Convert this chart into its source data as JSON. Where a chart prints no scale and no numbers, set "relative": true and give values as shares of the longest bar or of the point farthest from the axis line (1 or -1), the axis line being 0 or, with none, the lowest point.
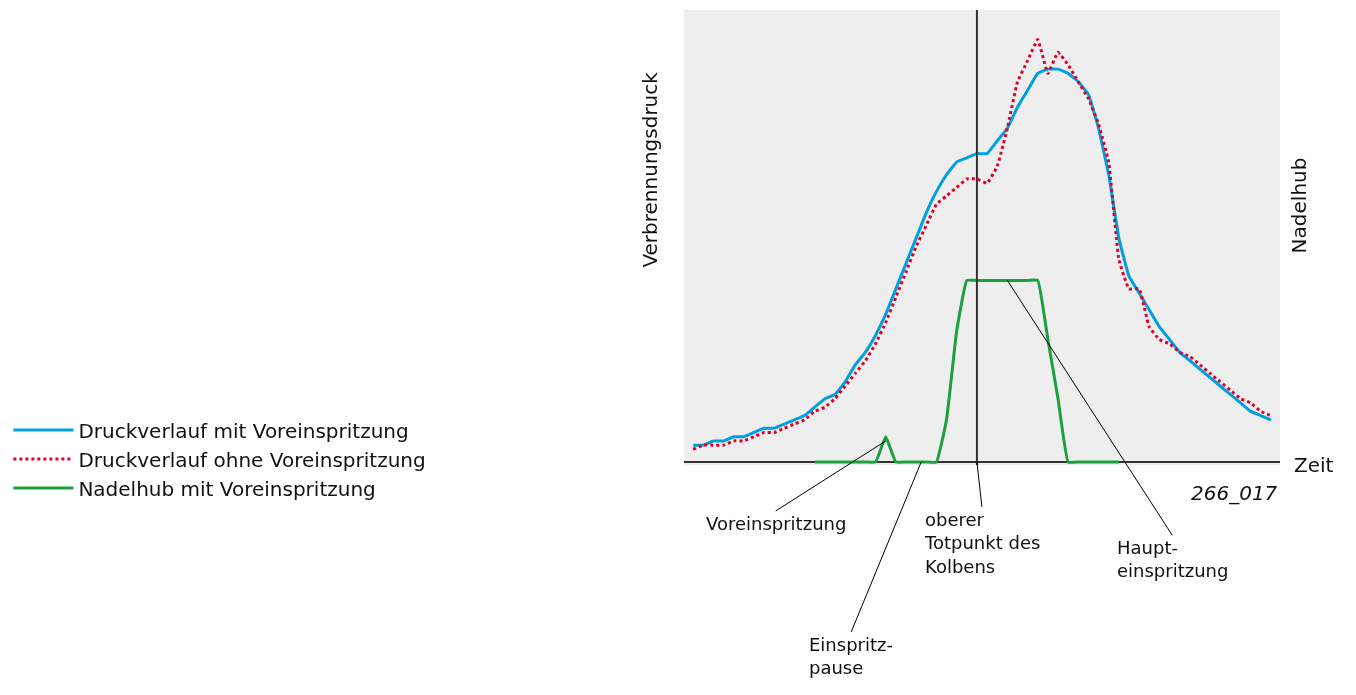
{
  "chart_data": {
    "type": "line",
    "relative": true,
    "xlabel": "Zeit",
    "ylabel": "Verbrennungsdruck",
    "y2label": "Nadelhub",
    "categories": [
      null,
      null,
      null,
      null,
      null,
      null,
      null,
      null,
      null,
      null,
      null,
      null,
      null,
      null,
      null,
      null,
      null,
      null,
      null,
      null,
      null,
      null,
      null,
      null,
      null,
      null,
      null,
      null,
      null,
      null,
      null,
      null,
      null,
      null,
      null,
      null,
      null,
      null,
      null,
      null,
      null,
      null,
      null,
      null,
      null,
      null,
      null,
      null,
      null,
      null,
      null,
      null,
      null,
      null,
      null,
      null,
      null,
      null
    ],
    "series": [
      {
        "name": "Druckverlauf mit Voreinspritzung",
        "color": "#00a0e0",
        "line_style": "solid",
        "values": [
          0.04,
          0.04,
          0.05,
          0.05,
          0.06,
          0.06,
          0.07,
          0.08,
          0.08,
          0.09,
          0.1,
          0.11,
          0.13,
          0.15,
          0.16,
          0.19,
          0.23,
          0.26,
          0.3,
          0.35,
          0.41,
          0.47,
          0.53,
          0.59,
          0.64,
          0.68,
          0.71,
          0.72,
          0.73,
          0.73,
          0.76,
          0.79,
          0.84,
          0.88,
          0.92,
          0.93,
          0.93,
          0.92,
          0.9,
          0.87,
          0.79,
          0.68,
          0.53,
          0.44,
          0.4,
          0.36,
          0.32,
          0.29,
          0.26,
          0.24,
          0.22,
          0.2,
          0.18,
          0.16,
          0.14,
          0.12,
          0.11,
          0.1
        ]
      },
      {
        "name": "Druckverlauf ohne Voreinspritzung",
        "color": "#e0002a",
        "line_style": "dotted",
        "values": [
          0.03,
          0.04,
          0.04,
          0.04,
          0.05,
          0.05,
          0.06,
          0.07,
          0.07,
          0.08,
          0.09,
          0.1,
          0.12,
          0.13,
          0.15,
          0.18,
          0.21,
          0.24,
          0.28,
          0.33,
          0.39,
          0.45,
          0.51,
          0.56,
          0.61,
          0.63,
          0.65,
          0.67,
          0.67,
          0.66,
          0.7,
          0.79,
          0.9,
          0.95,
          1.0,
          0.92,
          0.97,
          0.94,
          0.9,
          0.86,
          0.8,
          0.71,
          0.48,
          0.41,
          0.41,
          0.32,
          0.29,
          0.28,
          0.26,
          0.25,
          0.23,
          0.21,
          0.19,
          0.17,
          0.15,
          0.14,
          0.12,
          0.11
        ]
      },
      {
        "name": "Nadelhub mit Voreinspritzung",
        "color": "#1aa03c",
        "line_style": "solid",
        "values": [
          null,
          null,
          null,
          null,
          null,
          null,
          null,
          null,
          null,
          null,
          null,
          null,
          0,
          0,
          0,
          0,
          0,
          0,
          0,
          0.06,
          0,
          0,
          0,
          0,
          0,
          0.1,
          0.31,
          0.43,
          0.43,
          0.43,
          0.43,
          0.43,
          0.43,
          0.43,
          0.43,
          0.29,
          0.15,
          0,
          0,
          0,
          0,
          0,
          0,
          null,
          null,
          null,
          null,
          null,
          null,
          null,
          null,
          null,
          null,
          null,
          null,
          null,
          null,
          null
        ]
      }
    ],
    "annotations": [
      "266_017",
      "Voreinspritzung",
      "Einspritz-\npause",
      "oberer\nTotpunkt des\nKolbens",
      "Haupt-\neinspritzung"
    ],
    "legend": "left",
    "grid": false,
    "marker": "none"
  }
}
